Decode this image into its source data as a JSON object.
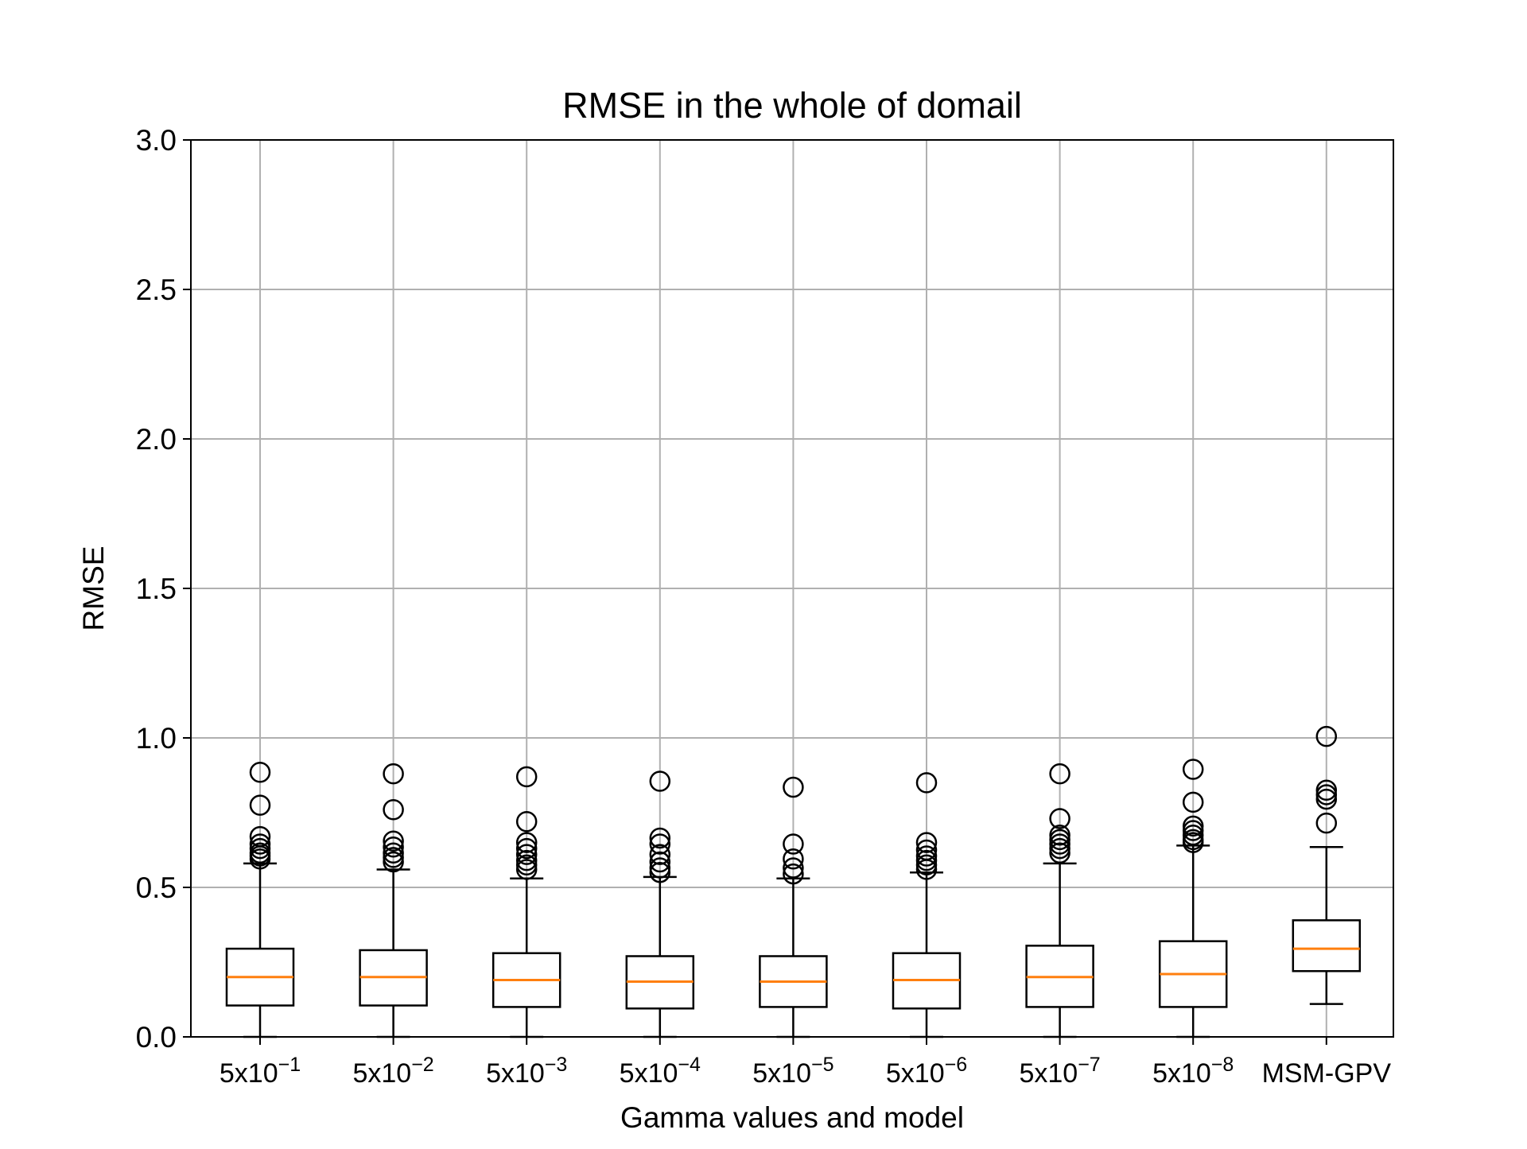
{
  "chart_data": {
    "type": "box",
    "title": "RMSE in the whole of domail",
    "xlabel": "Gamma values and model",
    "ylabel": "RMSE",
    "ylim": [
      0,
      3.0
    ],
    "yticks": [
      "0.0",
      "0.5",
      "1.0",
      "1.5",
      "2.0",
      "2.5",
      "3.0"
    ],
    "grid": true,
    "colors": {
      "box": "#000000",
      "median": "#ff7f0e",
      "grid": "#b0b0b0"
    },
    "categories": [
      {
        "base": "5x10",
        "exp": "−1"
      },
      {
        "base": "5x10",
        "exp": "−2"
      },
      {
        "base": "5x10",
        "exp": "−3"
      },
      {
        "base": "5x10",
        "exp": "−4"
      },
      {
        "base": "5x10",
        "exp": "−5"
      },
      {
        "base": "5x10",
        "exp": "−6"
      },
      {
        "base": "5x10",
        "exp": "−7"
      },
      {
        "base": "5x10",
        "exp": "−8"
      },
      {
        "base": "MSM-GPV",
        "exp": ""
      }
    ],
    "boxes": [
      {
        "whislo": 0.0,
        "q1": 0.105,
        "med": 0.2,
        "q3": 0.295,
        "whishi": 0.58,
        "fliers": [
          0.885,
          0.775,
          0.67,
          0.645,
          0.63,
          0.615,
          0.605,
          0.595
        ]
      },
      {
        "whislo": 0.0,
        "q1": 0.105,
        "med": 0.2,
        "q3": 0.29,
        "whishi": 0.56,
        "fliers": [
          0.88,
          0.76,
          0.655,
          0.635,
          0.615,
          0.6,
          0.585
        ]
      },
      {
        "whislo": 0.0,
        "q1": 0.1,
        "med": 0.19,
        "q3": 0.28,
        "whishi": 0.53,
        "fliers": [
          0.87,
          0.72,
          0.65,
          0.63,
          0.61,
          0.59,
          0.575,
          0.56
        ]
      },
      {
        "whislo": 0.0,
        "q1": 0.095,
        "med": 0.185,
        "q3": 0.27,
        "whishi": 0.535,
        "fliers": [
          0.855,
          0.665,
          0.645,
          0.61,
          0.585,
          0.565,
          0.55
        ]
      },
      {
        "whislo": 0.0,
        "q1": 0.1,
        "med": 0.185,
        "q3": 0.27,
        "whishi": 0.53,
        "fliers": [
          0.835,
          0.645,
          0.595,
          0.565,
          0.545
        ]
      },
      {
        "whislo": 0.0,
        "q1": 0.095,
        "med": 0.19,
        "q3": 0.28,
        "whishi": 0.55,
        "fliers": [
          0.85,
          0.65,
          0.625,
          0.605,
          0.59,
          0.575,
          0.56
        ]
      },
      {
        "whislo": 0.0,
        "q1": 0.1,
        "med": 0.2,
        "q3": 0.305,
        "whishi": 0.58,
        "fliers": [
          0.88,
          0.73,
          0.675,
          0.66,
          0.645,
          0.63,
          0.615
        ]
      },
      {
        "whislo": 0.0,
        "q1": 0.1,
        "med": 0.21,
        "q3": 0.32,
        "whishi": 0.64,
        "fliers": [
          0.895,
          0.785,
          0.705,
          0.69,
          0.675,
          0.66,
          0.65
        ]
      },
      {
        "whislo": 0.11,
        "q1": 0.22,
        "med": 0.295,
        "q3": 0.39,
        "whishi": 0.635,
        "fliers": [
          1.005,
          0.825,
          0.81,
          0.795,
          0.715
        ]
      }
    ]
  }
}
